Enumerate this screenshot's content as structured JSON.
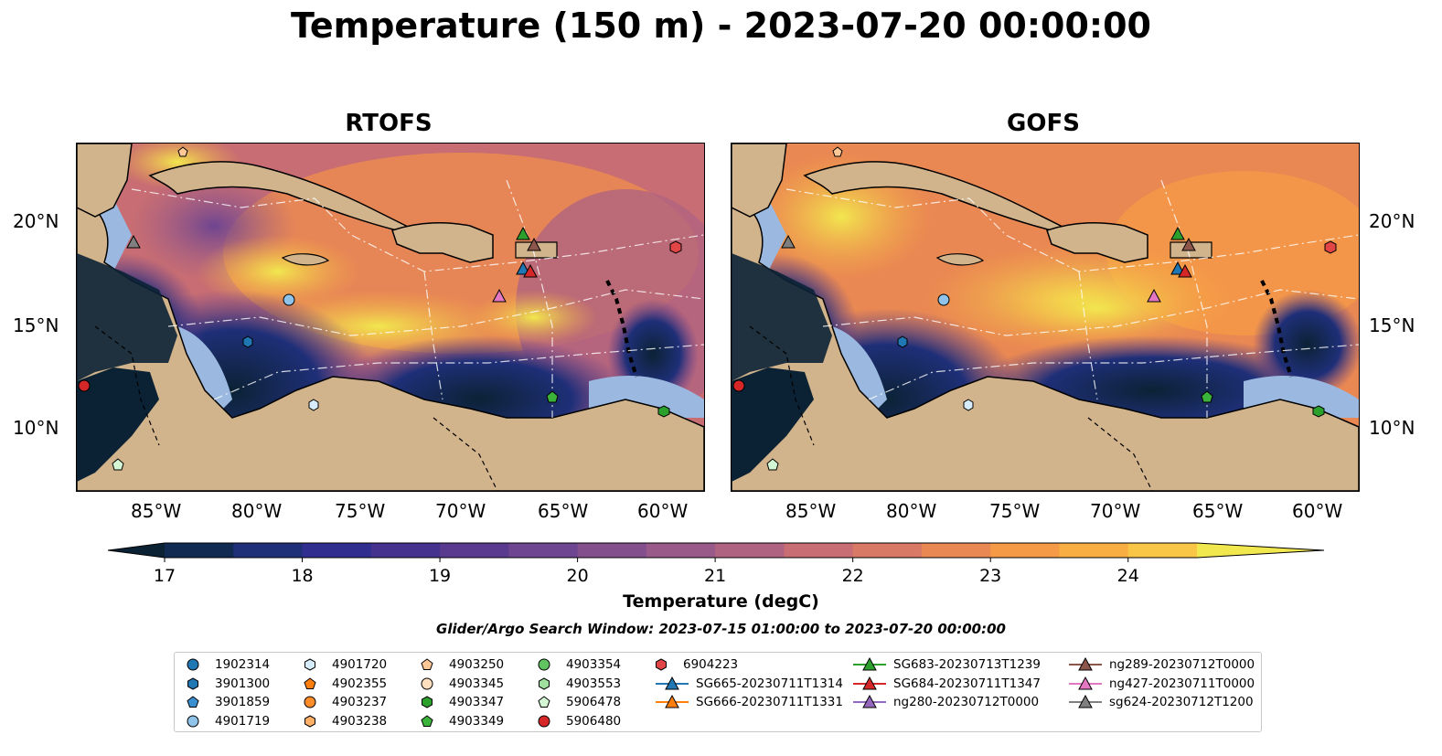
{
  "title": "Temperature (150 m) - 2023-07-20 00:00:00",
  "panels": [
    {
      "title": "RTOFS"
    },
    {
      "title": "GOFS"
    }
  ],
  "axes": {
    "lon_ticks": [
      "85°W",
      "80°W",
      "75°W",
      "70°W",
      "65°W",
      "60°W"
    ],
    "lat_ticks": [
      "20°N",
      "15°N",
      "10°N"
    ]
  },
  "colorbar": {
    "label": "Temperature (degC)",
    "ticks": [
      "17",
      "18",
      "19",
      "20",
      "21",
      "22",
      "23",
      "24"
    ],
    "min": 17,
    "max": 24.5,
    "extend": "both",
    "colors": [
      "#0b2235",
      "#102a52",
      "#1f2f78",
      "#302f90",
      "#45328f",
      "#5a3a8f",
      "#6e4590",
      "#83508d",
      "#9a5a89",
      "#b06380",
      "#c76d73",
      "#d87965",
      "#e98853",
      "#f59a47",
      "#f8ae43",
      "#f9c648",
      "#f1e74f"
    ]
  },
  "search_window": "Glider/Argo Search Window: 2023-07-15 01:00:00 to 2023-07-20 00:00:00",
  "legend": [
    {
      "label": "1902314",
      "marker": "circle",
      "color": "#1f77b4"
    },
    {
      "label": "3901300",
      "marker": "hexagon",
      "color": "#1f77b4"
    },
    {
      "label": "3901859",
      "marker": "pentagon",
      "color": "#3a8fd0"
    },
    {
      "label": "4901719",
      "marker": "circle",
      "color": "#8fc3ea"
    },
    {
      "label": "4901720",
      "marker": "hexagon",
      "color": "#d6ecfb"
    },
    {
      "label": "4902355",
      "marker": "pentagon",
      "color": "#ff7f0e"
    },
    {
      "label": "4903237",
      "marker": "circle",
      "color": "#ff8c28"
    },
    {
      "label": "4903238",
      "marker": "hexagon",
      "color": "#ffb066"
    },
    {
      "label": "4903250",
      "marker": "pentagon",
      "color": "#ffc896"
    },
    {
      "label": "4903345",
      "marker": "circle",
      "color": "#ffdfbd"
    },
    {
      "label": "4903347",
      "marker": "hexagon",
      "color": "#2ca02c"
    },
    {
      "label": "4903349",
      "marker": "pentagon",
      "color": "#3bb33b"
    },
    {
      "label": "4903354",
      "marker": "circle",
      "color": "#60c560"
    },
    {
      "label": "4903553",
      "marker": "hexagon",
      "color": "#9fe09f"
    },
    {
      "label": "5906478",
      "marker": "pentagon",
      "color": "#d4f7d4"
    },
    {
      "label": "5906480",
      "marker": "circle",
      "color": "#d62728"
    },
    {
      "label": "6904223",
      "marker": "hexagon",
      "color": "#e14545"
    },
    {
      "label": "SG665-20230711T1314",
      "marker": "triangle",
      "color": "#1f77b4"
    },
    {
      "label": "SG666-20230711T1331",
      "marker": "triangle",
      "color": "#ff7f0e"
    },
    {
      "label": "SG683-20230713T1239",
      "marker": "triangle",
      "color": "#2ca02c"
    },
    {
      "label": "SG684-20230711T1347",
      "marker": "triangle",
      "color": "#d62728"
    },
    {
      "label": "ng280-20230712T0000",
      "marker": "triangle",
      "color": "#9467bd"
    },
    {
      "label": "ng289-20230712T0000",
      "marker": "triangle",
      "color": "#8c564b"
    },
    {
      "label": "ng427-20230711T0000",
      "marker": "triangle",
      "color": "#e377c2"
    },
    {
      "label": "sg624-20230712T1200",
      "marker": "triangle",
      "color": "#7f7f7f"
    }
  ],
  "map_colors": {
    "land": "#d2b48c",
    "shelf": "#9bb9e0",
    "coast": "#000000"
  }
}
